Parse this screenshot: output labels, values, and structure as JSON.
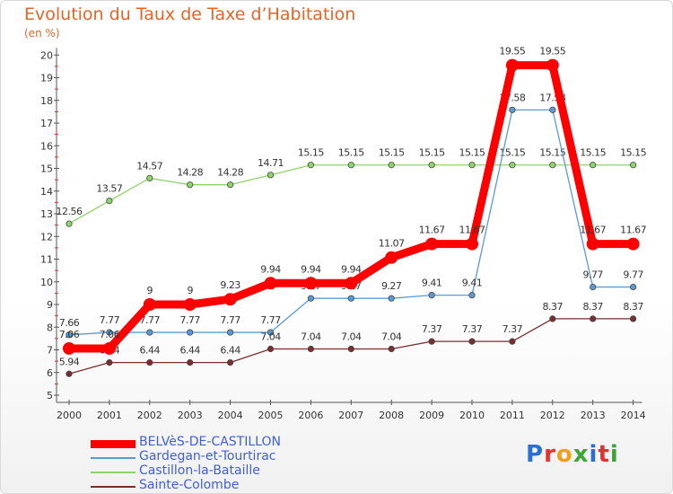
{
  "chart_data": {
    "type": "line",
    "title": "Evolution du Taux de Taxe d’Habitation",
    "ylabel": "(en %)",
    "xlabel": "",
    "categories": [
      "2000",
      "2001",
      "2002",
      "2003",
      "2004",
      "2005",
      "2006",
      "2007",
      "2008",
      "2009",
      "2010",
      "2011",
      "2012",
      "2013",
      "2014"
    ],
    "ylim": [
      5,
      20
    ],
    "yticks": [
      "5",
      "6",
      "7",
      "8",
      "9",
      "10",
      "11",
      "12",
      "13",
      "14",
      "15",
      "16",
      "17",
      "18",
      "19",
      "20"
    ],
    "grid": false,
    "legend_position": "bottom-left",
    "series": [
      {
        "name": "BELVèS-DE-CASTILLON",
        "color": "#ff0000",
        "values": [
          7.06,
          7.06,
          9,
          9,
          9.23,
          9.94,
          9.94,
          9.94,
          11.07,
          11.67,
          11.67,
          19.55,
          19.55,
          11.67,
          11.67
        ],
        "labels": [
          "7.06",
          "7.06",
          "9",
          "9",
          "9.23",
          "9.94",
          "9.94",
          "9.94",
          "11.07",
          "11.67",
          "11.67",
          "19.55",
          "19.55",
          "11.67",
          "11.67"
        ]
      },
      {
        "name": "Gardegan-et-Tourtirac",
        "color": "#5b9bd5",
        "values": [
          7.66,
          7.77,
          7.77,
          7.77,
          7.77,
          7.77,
          9.27,
          9.27,
          9.27,
          9.41,
          9.41,
          17.58,
          17.58,
          9.77,
          9.77
        ],
        "labels": [
          "7.66",
          "7.77",
          "7.77",
          "7.77",
          "7.77",
          "7.77",
          "9.27",
          "9.27",
          "9.27",
          "9.41",
          "9.41",
          "17.58",
          "17.58",
          "9.77",
          "9.77"
        ]
      },
      {
        "name": "Castillon-la-Bataille",
        "color": "#8fd36b",
        "values": [
          12.56,
          13.57,
          14.57,
          14.28,
          14.28,
          14.71,
          15.15,
          15.15,
          15.15,
          15.15,
          15.15,
          15.15,
          15.15,
          15.15,
          15.15
        ],
        "labels": [
          "12.56",
          "13.57",
          "14.57",
          "14.28",
          "14.28",
          "14.71",
          "15.15",
          "15.15",
          "15.15",
          "15.15",
          "15.15",
          "15.15",
          "15.15",
          "15.15",
          "15.15"
        ]
      },
      {
        "name": "Sainte-Colombe",
        "color": "#7a2e2e",
        "values": [
          5.94,
          6.44,
          6.44,
          6.44,
          6.44,
          7.04,
          7.04,
          7.04,
          7.04,
          7.37,
          7.37,
          7.37,
          8.37,
          8.37,
          8.37
        ],
        "labels": [
          "5.94",
          "6.44",
          "6.44",
          "6.44",
          "6.44",
          "7.04",
          "7.04",
          "7.04",
          "7.04",
          "7.37",
          "7.37",
          "7.37",
          "8.37",
          "8.37",
          "8.37"
        ]
      }
    ]
  },
  "logo": {
    "text": "Proxiti"
  }
}
